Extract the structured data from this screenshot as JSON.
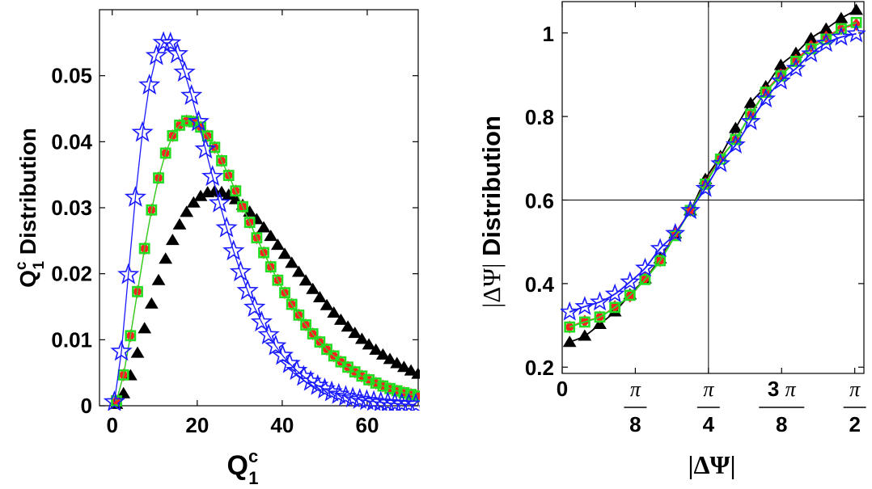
{
  "chart_data": [
    {
      "type": "scatter",
      "title": "",
      "xlabel_main": "Q",
      "xlabel_sup": "c",
      "xlabel_sub": "1",
      "ylabel_main": "Q",
      "ylabel_sup": "c",
      "ylabel_sub": "1",
      "ylabel_rest": " Distribution",
      "xlim": [
        -3,
        72
      ],
      "ylim": [
        0,
        0.06
      ],
      "xticks": [
        0,
        20,
        40,
        60
      ],
      "xtick_labels": [
        "0",
        "20",
        "40",
        "60"
      ],
      "yticks": [
        0,
        0.01,
        0.02,
        0.03,
        0.04,
        0.05
      ],
      "ytick_labels": [
        "0",
        "0.01",
        "0.02",
        "0.03",
        "0.04",
        "0.05"
      ],
      "grid": false,
      "legend": "none",
      "series": [
        {
          "color": "#000000",
          "marker": "triangle",
          "line": "none",
          "x_start": 1,
          "x_step": 1.65,
          "x_end": 72,
          "curve": {
            "peak_x": 24.2,
            "peak_y": 0.0325,
            "width": 11.2
          }
        },
        {
          "color": "#ff2020",
          "marker": "diamond",
          "line": "solid",
          "x_start": 1,
          "x_step": 1.65,
          "x_end": 72,
          "curve": {
            "peak_x": 18,
            "peak_y": 0.0432,
            "width": 8.6
          }
        },
        {
          "color": "#22dd22",
          "marker": "square",
          "line": "solid",
          "x_start": 1,
          "x_step": 1.65,
          "x_end": 72,
          "curve": {
            "peak_x": 18,
            "peak_y": 0.0432,
            "width": 8.6
          }
        },
        {
          "color": "#1a1aff",
          "marker": "star",
          "line": "solid",
          "x_start": 0.5,
          "x_step": 1.65,
          "x_end": 72,
          "curve": {
            "peak_x": 12.8,
            "peak_y": 0.0552,
            "width": 6.4
          }
        }
      ]
    },
    {
      "type": "line",
      "title": "",
      "xlabel": "|ΔΨ|",
      "ylabel_math": "|ΔΨ|",
      "ylabel_rest": " Distribution",
      "xlim": [
        0,
        1.62
      ],
      "ylim": [
        0.185,
        1.075
      ],
      "xticks": [
        0,
        0.3927,
        0.7854,
        1.1781,
        1.5708
      ],
      "xtick_labels": [
        "0",
        "π/8",
        "π/4",
        "3π/8",
        "π/2"
      ],
      "yticks": [
        0.2,
        0.4,
        0.6,
        0.8,
        1.0
      ],
      "ytick_labels": [
        "0.2",
        "0.4",
        "0.6",
        "0.8",
        "1"
      ],
      "reference_lines": {
        "x": 0.7854,
        "y": 0.6
      },
      "grid": false,
      "legend": "none",
      "series": [
        {
          "color": "#000000",
          "marker": "triangle",
          "n_points": 20,
          "x": [
            0.04,
            0.121,
            0.202,
            0.283,
            0.364,
            0.445,
            0.526,
            0.607,
            0.688,
            0.769,
            0.85,
            0.931,
            1.012,
            1.093,
            1.174,
            1.255,
            1.336,
            1.417,
            1.498,
            1.579
          ],
          "y": [
            0.26,
            0.275,
            0.303,
            0.333,
            0.374,
            0.412,
            0.46,
            0.52,
            0.575,
            0.65,
            0.705,
            0.772,
            0.832,
            0.872,
            0.923,
            0.952,
            0.987,
            1.01,
            1.035,
            1.055
          ]
        },
        {
          "color": "#ff2020",
          "marker": "diamond",
          "n_points": 20,
          "x": [
            0.04,
            0.121,
            0.202,
            0.283,
            0.364,
            0.445,
            0.526,
            0.607,
            0.688,
            0.769,
            0.85,
            0.931,
            1.012,
            1.093,
            1.174,
            1.255,
            1.336,
            1.417,
            1.498,
            1.579
          ],
          "y": [
            0.296,
            0.31,
            0.32,
            0.345,
            0.37,
            0.412,
            0.455,
            0.52,
            0.575,
            0.64,
            0.7,
            0.745,
            0.805,
            0.86,
            0.9,
            0.935,
            0.968,
            0.99,
            1.01,
            1.02
          ]
        },
        {
          "color": "#22dd22",
          "marker": "square",
          "n_points": 20,
          "x": [
            0.04,
            0.121,
            0.202,
            0.283,
            0.364,
            0.445,
            0.526,
            0.607,
            0.688,
            0.769,
            0.85,
            0.931,
            1.012,
            1.093,
            1.174,
            1.255,
            1.336,
            1.417,
            1.498,
            1.579
          ],
          "y": [
            0.296,
            0.308,
            0.32,
            0.343,
            0.372,
            0.41,
            0.455,
            0.515,
            0.575,
            0.638,
            0.698,
            0.745,
            0.805,
            0.858,
            0.897,
            0.932,
            0.962,
            0.985,
            1.01,
            1.025
          ]
        },
        {
          "color": "#1a1aff",
          "marker": "star",
          "n_points": 20,
          "x": [
            0.04,
            0.121,
            0.202,
            0.283,
            0.364,
            0.445,
            0.526,
            0.607,
            0.688,
            0.769,
            0.85,
            0.931,
            1.012,
            1.093,
            1.174,
            1.255,
            1.336,
            1.417,
            1.498,
            1.579
          ],
          "y": [
            0.332,
            0.345,
            0.356,
            0.375,
            0.404,
            0.437,
            0.484,
            0.52,
            0.575,
            0.628,
            0.687,
            0.732,
            0.788,
            0.842,
            0.885,
            0.915,
            0.95,
            0.975,
            0.99,
            0.998
          ]
        }
      ]
    }
  ]
}
